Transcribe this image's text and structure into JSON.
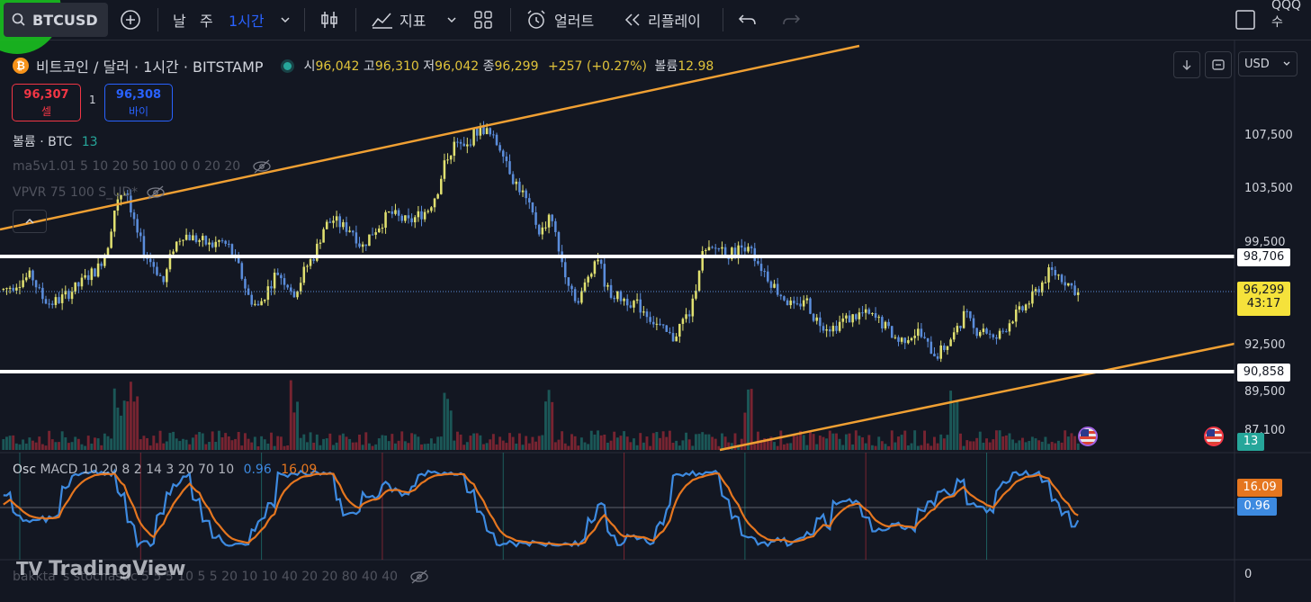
{
  "toolbar": {
    "symbol": "BTCUSD",
    "interval_day": "날",
    "interval_week": "주",
    "interval_active": "1시간",
    "indicators": "지표",
    "alerts": "얼러트",
    "replay": "리플레이",
    "user": "QQQ수"
  },
  "header": {
    "title": "비트코인 / 달러 · 1시간 · BITSTAMP",
    "open_label": "시",
    "open": "96,042",
    "high_label": "고",
    "high": "96,310",
    "low_label": "저",
    "low": "96,042",
    "close_label": "종",
    "close": "96,299",
    "change": "+257 (+0.27%)",
    "volume_label": "볼륨",
    "volume": "12.98"
  },
  "trade": {
    "sell_price": "96,307",
    "sell_label": "셀",
    "quantity": "1",
    "buy_price": "96,308",
    "buy_label": "바이"
  },
  "legends": {
    "volume_name": "볼륨 · BTC",
    "volume_value": "13",
    "ma": "ma5v1.01 5 10 20 50 100 0 0 20 20",
    "vpvr": "VPVR 75 100 S_UD*",
    "osc_name": "Osc",
    "macd": "MACD 10 20 8 2 14 3 20 70 10",
    "macd_v1": "0.96",
    "macd_v2": "16.09",
    "stoch": "bakkta 's stochastic 5 5 5 10 5 5 20 10 10 40 20 20 80 40 40"
  },
  "price_axis": {
    "currency": "USD",
    "ticks": [
      "107,500",
      "103,500",
      "99,500",
      "92,500",
      "89,500",
      "87,100"
    ],
    "level_high": "98,706",
    "level_low": "90,858",
    "last_price": "96,299",
    "countdown": "43:17",
    "volume_tag": "13",
    "osc_tag_orange": "16.09",
    "osc_tag_blue": "0.96",
    "stoch_zero": "0"
  },
  "brand": "TradingView",
  "colors": {
    "background": "#131722",
    "bull_candle": "#e0e070",
    "bear_candle": "#5b8ddb",
    "trendline": "#f0a033",
    "level_line": "#ffffff",
    "macd_blue": "#3d8ae0",
    "macd_orange": "#e5761f",
    "last_price_tag": "#f5e23b"
  },
  "chart_data": {
    "type": "candlestick",
    "title": "비트코인 / 달러 · 1시간 · BITSTAMP",
    "ylim": [
      86000,
      110000
    ],
    "horizontal_levels": [
      98706,
      90858
    ],
    "last_price": 96299,
    "close_path": [
      96500,
      96800,
      97200,
      97500,
      96000,
      95500,
      95800,
      96300,
      96800,
      97500,
      98000,
      99500,
      103000,
      103800,
      101000,
      99000,
      98200,
      97000,
      99500,
      100500,
      100200,
      100000,
      99600,
      100000,
      99500,
      98000,
      96000,
      95200,
      96500,
      97800,
      97000,
      96200,
      98000,
      99000,
      101000,
      101500,
      101000,
      100800,
      99500,
      100500,
      101200,
      102000,
      101600,
      101300,
      101800,
      102200,
      103500,
      106000,
      107000,
      106500,
      107800,
      108000,
      107200,
      106500,
      104500,
      103500,
      102000,
      100500,
      102000,
      99000,
      97000,
      95500,
      97500,
      99000,
      96500,
      96000,
      95800,
      95500,
      95000,
      94200,
      93500,
      93000,
      94200,
      95000,
      99000,
      99200,
      99600,
      99000,
      99400,
      99800,
      98500,
      97500,
      96500,
      95800,
      95000,
      96000,
      94500,
      94000,
      93800,
      94300,
      94500,
      94800,
      94600,
      94200,
      93500,
      92800,
      93200,
      93500,
      92500,
      91800,
      92500,
      93500,
      94800,
      93500,
      93800,
      92800,
      93500,
      94500,
      95000,
      95800,
      96800,
      97800,
      97500,
      96900,
      96299
    ],
    "volume_spikes_index": [
      12,
      13,
      14,
      31,
      47,
      58,
      79,
      101
    ]
  }
}
